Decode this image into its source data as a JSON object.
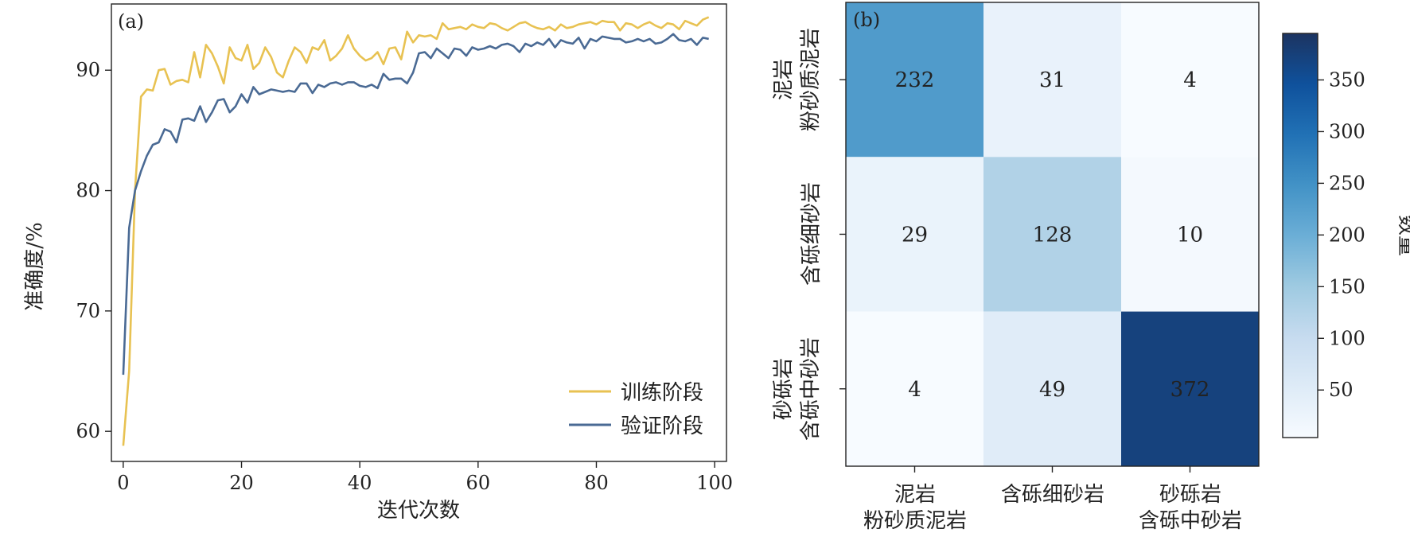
{
  "chart_data": [
    {
      "type": "line",
      "panel_label": "(a)",
      "xlabel": "迭代次数",
      "ylabel": "准确度/%",
      "xlim": [
        -2,
        102
      ],
      "ylim": [
        57.5,
        95.5
      ],
      "xticks": [
        0,
        20,
        40,
        60,
        80,
        100
      ],
      "yticks": [
        60,
        70,
        80,
        90
      ],
      "legend_position": "lower-right",
      "series": [
        {
          "name": "训练阶段",
          "color": "#E8C252",
          "values": [
            58.8,
            65.0,
            80.0,
            87.8,
            88.4,
            88.3,
            90.0,
            90.1,
            88.8,
            89.1,
            89.2,
            89.0,
            91.5,
            89.4,
            92.1,
            91.4,
            90.3,
            88.9,
            91.9,
            91.0,
            90.8,
            92.1,
            90.1,
            90.6,
            91.9,
            91.1,
            89.8,
            89.4,
            90.8,
            91.9,
            91.5,
            90.6,
            91.9,
            91.7,
            92.5,
            90.8,
            91.2,
            91.8,
            92.9,
            91.8,
            91.2,
            90.8,
            91.0,
            91.5,
            90.5,
            91.8,
            91.9,
            90.9,
            93.2,
            92.3,
            92.9,
            92.8,
            92.9,
            92.6,
            93.9,
            93.4,
            93.5,
            93.6,
            93.4,
            93.8,
            93.6,
            93.5,
            93.9,
            93.8,
            93.5,
            93.3,
            93.6,
            93.9,
            94.0,
            93.7,
            93.5,
            93.4,
            93.6,
            93.3,
            93.8,
            93.5,
            93.6,
            93.8,
            93.9,
            94.0,
            93.8,
            94.1,
            94.0,
            94.0,
            93.3,
            93.9,
            93.8,
            93.5,
            93.8,
            94.0,
            93.7,
            93.5,
            93.9,
            93.8,
            93.4,
            94.1,
            93.9,
            93.7,
            94.2,
            94.4
          ]
        },
        {
          "name": "验证阶段",
          "color": "#4A6A94",
          "values": [
            64.7,
            76.9,
            80.0,
            81.6,
            82.9,
            83.8,
            84.0,
            85.1,
            84.9,
            84.0,
            85.9,
            86.0,
            85.8,
            87.0,
            85.7,
            86.5,
            87.5,
            87.6,
            86.5,
            87.0,
            88.0,
            87.3,
            88.6,
            88.0,
            88.2,
            88.4,
            88.3,
            88.2,
            88.3,
            88.2,
            88.9,
            88.9,
            88.1,
            88.8,
            88.6,
            88.9,
            89.0,
            88.8,
            89.0,
            89.0,
            88.7,
            88.6,
            88.8,
            88.5,
            89.7,
            89.2,
            89.3,
            89.3,
            88.9,
            89.8,
            91.4,
            91.5,
            91.0,
            91.8,
            91.4,
            91.0,
            91.8,
            91.7,
            91.2,
            91.9,
            91.7,
            91.8,
            92.0,
            91.8,
            92.1,
            92.2,
            92.0,
            91.5,
            92.2,
            92.0,
            92.3,
            92.1,
            92.6,
            91.9,
            92.5,
            92.3,
            92.2,
            92.7,
            91.8,
            92.6,
            92.4,
            92.8,
            92.7,
            92.6,
            92.6,
            92.3,
            92.4,
            92.6,
            92.4,
            92.6,
            92.2,
            92.3,
            92.6,
            93.0,
            92.5,
            92.4,
            92.6,
            92.1,
            92.7,
            92.6
          ]
        }
      ]
    },
    {
      "type": "heatmap",
      "panel_label": "(b)",
      "row_labels": [
        [
          "泥岩",
          "粉砂质泥岩"
        ],
        [
          "含砾细砂岩"
        ],
        [
          "砂砾岩",
          "含砾中砂岩"
        ]
      ],
      "col_labels": [
        [
          "泥岩",
          "粉砂质泥岩"
        ],
        [
          "含砾细砂岩"
        ],
        [
          "砂砾岩",
          "含砾中砂岩"
        ]
      ],
      "values": [
        [
          232,
          31,
          4
        ],
        [
          29,
          128,
          10
        ],
        [
          4,
          49,
          372
        ]
      ],
      "vmin": 4,
      "vmax": 395,
      "colormap": "Blues",
      "colorbar_label": "数量",
      "colorbar_ticks": [
        50,
        100,
        150,
        200,
        250,
        300,
        350
      ]
    }
  ]
}
